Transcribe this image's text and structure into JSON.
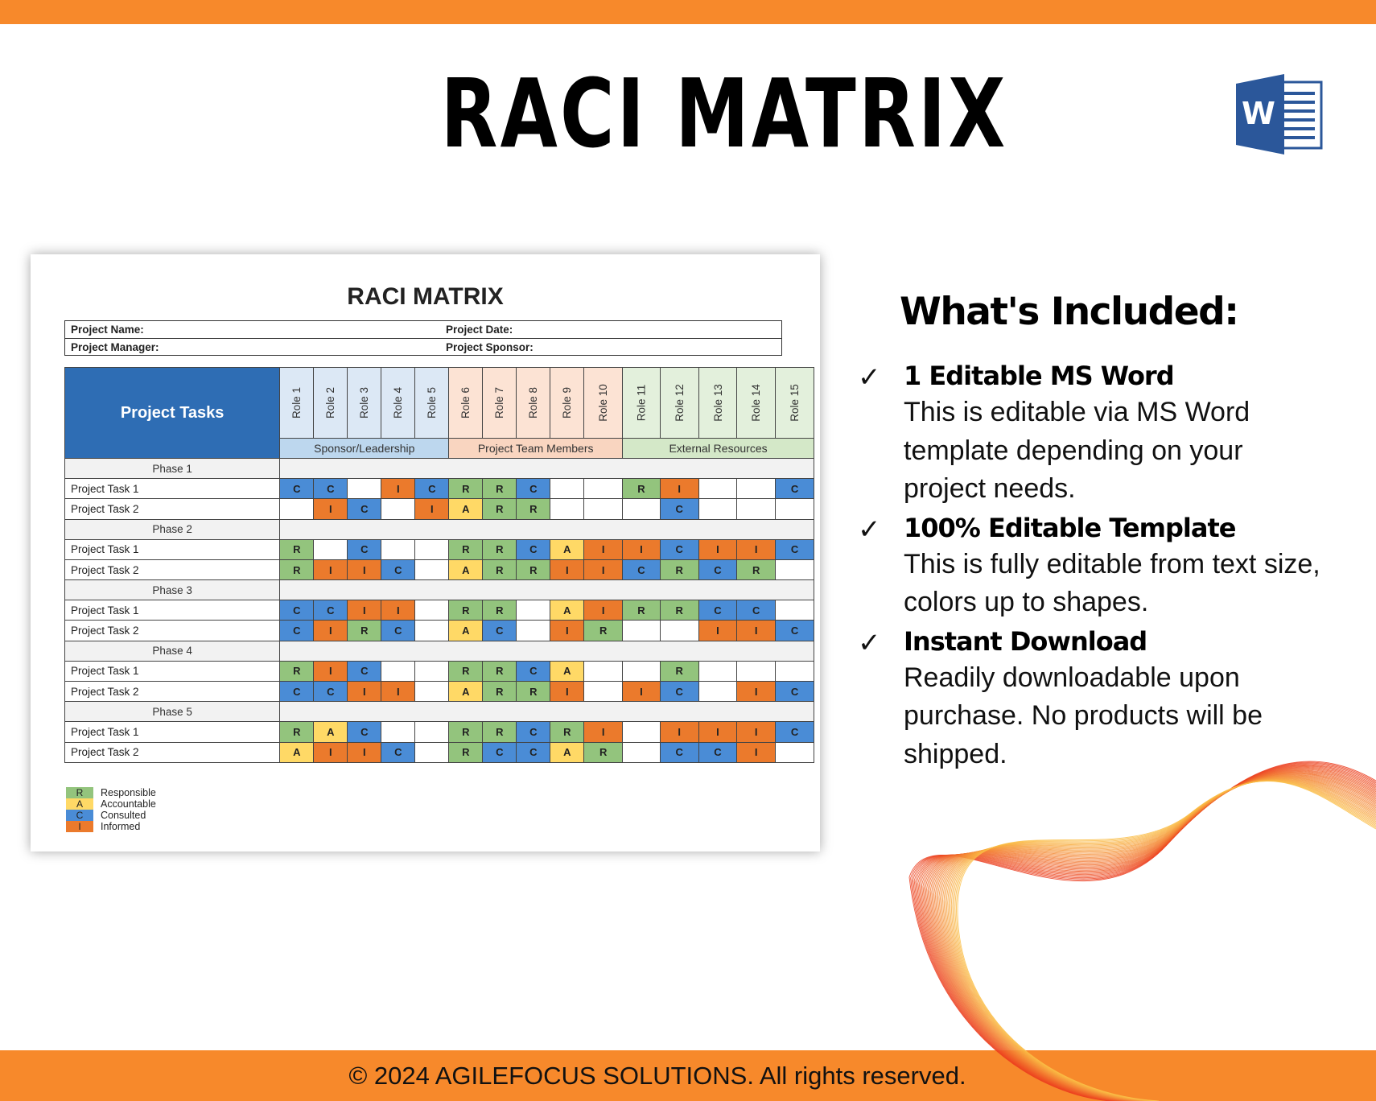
{
  "header": {
    "title": "RACI MATRIX",
    "app_icon": "ms-word-icon"
  },
  "colors": {
    "brand_orange": "#F7892B",
    "R": "#93C47D",
    "A": "#FFD966",
    "C": "#4A8CD6",
    "I": "#EB7A2C",
    "header_blue": "#2E6DB4"
  },
  "document": {
    "title": "RACI MATRIX",
    "info": {
      "project_name": "Project Name:",
      "project_date": "Project Date:",
      "project_manager": "Project Manager:",
      "project_sponsor": "Project Sponsor:"
    },
    "tasks_header": "Project Tasks",
    "roles": [
      "Role 1",
      "Role 2",
      "Role 3",
      "Role 4",
      "Role 5",
      "Role 6",
      "Role 7",
      "Role 8",
      "Role 9",
      "Role 10",
      "Role 11",
      "Role 12",
      "Role 13",
      "Role 14",
      "Role 15"
    ],
    "groups": [
      {
        "label": "Sponsor/Leadership",
        "span": 5,
        "color": "#DCE8F5",
        "dark": "#BDD7EE"
      },
      {
        "label": "Project Team Members",
        "span": 5,
        "color": "#FCE3D4",
        "dark": "#F9D5C0"
      },
      {
        "label": "External Resources",
        "span": 5,
        "color": "#E3F0DC",
        "dark": "#D4E8C8"
      }
    ],
    "phases": [
      {
        "label": "Phase 1",
        "tasks": [
          {
            "label": "Project Task 1",
            "cells": [
              "C",
              "C",
              "",
              "I",
              "C",
              "R",
              "R",
              "C",
              "",
              "",
              "R",
              "I",
              "",
              "",
              "C"
            ]
          },
          {
            "label": "Project Task 2",
            "cells": [
              "",
              "I",
              "C",
              "",
              "I",
              "A",
              "R",
              "R",
              "",
              "",
              "",
              "C",
              "",
              "",
              ""
            ]
          }
        ]
      },
      {
        "label": "Phase 2",
        "tasks": [
          {
            "label": "Project Task 1",
            "cells": [
              "R",
              "",
              "C",
              "",
              "",
              "R",
              "R",
              "C",
              "A",
              "I",
              "I",
              "C",
              "I",
              "I",
              "C"
            ]
          },
          {
            "label": "Project Task 2",
            "cells": [
              "R",
              "I",
              "I",
              "C",
              "",
              "A",
              "R",
              "R",
              "I",
              "I",
              "C",
              "R",
              "C",
              "R",
              ""
            ]
          }
        ]
      },
      {
        "label": "Phase 3",
        "tasks": [
          {
            "label": "Project Task 1",
            "cells": [
              "C",
              "C",
              "I",
              "I",
              "",
              "R",
              "R",
              "",
              "A",
              "I",
              "R",
              "R",
              "C",
              "C",
              ""
            ]
          },
          {
            "label": "Project Task 2",
            "cells": [
              "C",
              "I",
              "R",
              "C",
              "",
              "A",
              "C",
              "",
              "I",
              "R",
              "",
              "",
              "I",
              "I",
              "C"
            ]
          }
        ]
      },
      {
        "label": "Phase 4",
        "tasks": [
          {
            "label": "Project Task 1",
            "cells": [
              "R",
              "I",
              "C",
              "",
              "",
              "R",
              "R",
              "C",
              "A",
              "",
              "",
              "R",
              "",
              "",
              ""
            ]
          },
          {
            "label": "Project Task 2",
            "cells": [
              "C",
              "C",
              "I",
              "I",
              "",
              "A",
              "R",
              "R",
              "I",
              "",
              "I",
              "C",
              "",
              "I",
              "C"
            ]
          }
        ]
      },
      {
        "label": "Phase 5",
        "tasks": [
          {
            "label": "Project Task 1",
            "cells": [
              "R",
              "A",
              "C",
              "",
              "",
              "R",
              "R",
              "C",
              "R",
              "I",
              "",
              "I",
              "I",
              "I",
              "C"
            ]
          },
          {
            "label": "Project Task 2",
            "cells": [
              "A",
              "I",
              "I",
              "C",
              "",
              "R",
              "C",
              "C",
              "A",
              "R",
              "",
              "C",
              "C",
              "I",
              ""
            ]
          }
        ]
      }
    ],
    "legend": [
      {
        "key": "R",
        "label": "Responsible"
      },
      {
        "key": "A",
        "label": "Accountable"
      },
      {
        "key": "C",
        "label": "Consulted"
      },
      {
        "key": "I",
        "label": "Informed"
      }
    ]
  },
  "included": {
    "title": "What's Included:",
    "items": [
      {
        "heading": "1 Editable MS Word",
        "lines": [
          "This is editable via MS Word",
          "template depending on your",
          "project needs."
        ]
      },
      {
        "heading": "100% Editable  Template",
        "lines": [
          "This is fully editable from text size,",
          "colors up to shapes."
        ]
      },
      {
        "heading": "Instant Download",
        "lines": [
          "Readily downloadable upon",
          "purchase. No products will be",
          "shipped."
        ]
      }
    ]
  },
  "footer": {
    "copyright": "© 2024 AGILEFOCUS SOLUTIONS. All rights reserved."
  }
}
